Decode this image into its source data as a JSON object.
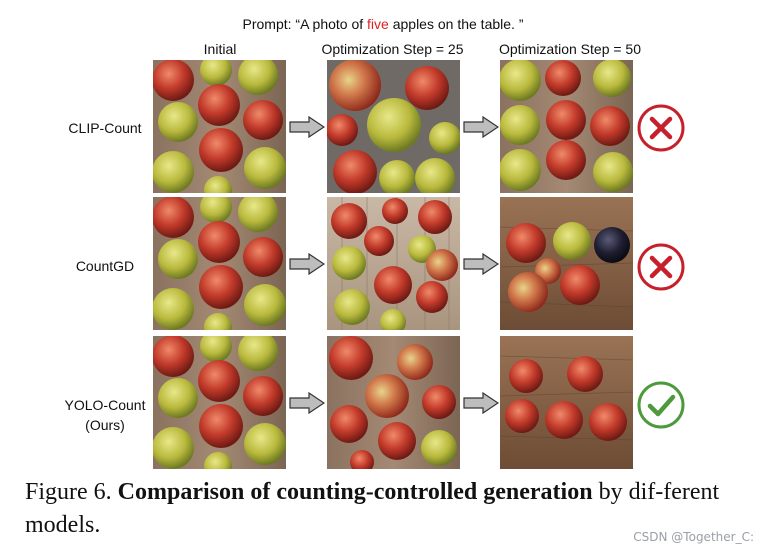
{
  "figure": {
    "prompt_prefix": "Prompt: “A photo of ",
    "prompt_highlight": "five",
    "prompt_suffix": " apples on the table. ”",
    "columns": [
      "Initial",
      "Optimization Step = 25",
      "Optimization Step = 50"
    ],
    "rows": [
      {
        "label_line1": "CLIP-Count",
        "label_line2": "",
        "result": "fail"
      },
      {
        "label_line1": "CountGD",
        "label_line2": "",
        "result": "fail"
      },
      {
        "label_line1": "YOLO-Count",
        "label_line2": "(Ours)",
        "result": "success"
      }
    ],
    "colors": {
      "highlight": "#d22222",
      "fail": "#c8202a",
      "success": "#4c9a3c"
    },
    "icons": [
      "arrow-right-icon",
      "cross-circle-icon",
      "check-circle-icon"
    ]
  },
  "caption": {
    "label": "Figure 6.",
    "bold": "Comparison of counting-controlled generation",
    "rest": " by dif-ferent models."
  },
  "watermark": "CSDN @Together_C:"
}
